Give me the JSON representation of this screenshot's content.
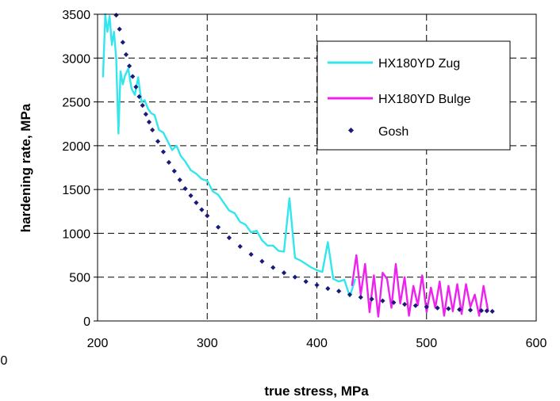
{
  "chart_data": {
    "type": "scatter",
    "title": "",
    "xlabel": "true stress, MPa",
    "ylabel": "hardening rate, MPa",
    "xlim": [
      200,
      600
    ],
    "ylim": [
      0,
      3500
    ],
    "x_ticks": [
      200,
      300,
      400,
      500,
      600
    ],
    "y_ticks": [
      0,
      500,
      1000,
      1500,
      2000,
      2500,
      3000,
      3500
    ],
    "x_tick_labels": [
      "200",
      "300",
      "400",
      "500",
      "600"
    ],
    "y_tick_labels": [
      "0",
      "500",
      "1000",
      "1500",
      "2000",
      "2500",
      "3000",
      "3500"
    ],
    "stray_tick_label": "0",
    "grid": true,
    "legend_position": "top-right",
    "series": [
      {
        "name": "HX180YD Zug",
        "style": "line",
        "color": "#33e6ee",
        "x": [
          205,
          207,
          209,
          211,
          213,
          215,
          217,
          219,
          221,
          223,
          225,
          228,
          231,
          234,
          237,
          240,
          243,
          246,
          249,
          252,
          256,
          260,
          264,
          268,
          272,
          276,
          280,
          285,
          290,
          295,
          300,
          305,
          310,
          315,
          320,
          325,
          330,
          335,
          340,
          345,
          350,
          355,
          360,
          365,
          370,
          375,
          380,
          385,
          390,
          395,
          400,
          405,
          410,
          415,
          420,
          425,
          430,
          435
        ],
        "y": [
          2780,
          3500,
          3300,
          3480,
          3150,
          3300,
          3000,
          2140,
          2850,
          2700,
          2800,
          2880,
          2650,
          2580,
          2780,
          2500,
          2520,
          2420,
          2370,
          2350,
          2180,
          2150,
          2050,
          1950,
          2000,
          1880,
          1820,
          1720,
          1680,
          1620,
          1600,
          1480,
          1440,
          1350,
          1260,
          1230,
          1130,
          1100,
          1010,
          1030,
          920,
          860,
          860,
          800,
          790,
          1400,
          720,
          690,
          650,
          610,
          580,
          560,
          900,
          480,
          450,
          470,
          280,
          480
        ]
      },
      {
        "name": "HX180YD Bulge",
        "style": "line",
        "color": "#ee22ee",
        "x": [
          432,
          436,
          440,
          444,
          448,
          452,
          456,
          460,
          464,
          468,
          472,
          476,
          480,
          484,
          488,
          492,
          496,
          500,
          504,
          508,
          512,
          516,
          520,
          524,
          528,
          532,
          536,
          540,
          544,
          548,
          552,
          556
        ],
        "y": [
          400,
          750,
          300,
          650,
          100,
          520,
          50,
          550,
          480,
          150,
          650,
          200,
          500,
          60,
          400,
          180,
          520,
          100,
          380,
          150,
          450,
          60,
          400,
          110,
          420,
          80,
          420,
          160,
          300,
          60,
          400,
          120
        ]
      },
      {
        "name": "Gosh",
        "style": "markers",
        "color": "#1a1a7a",
        "x": [
          217,
          220,
          223,
          226,
          229,
          232,
          235,
          238,
          241,
          244,
          247,
          250,
          255,
          260,
          265,
          270,
          275,
          280,
          285,
          290,
          295,
          300,
          310,
          320,
          330,
          340,
          350,
          360,
          370,
          380,
          390,
          400,
          410,
          420,
          430,
          440,
          450,
          460,
          470,
          480,
          490,
          500,
          510,
          520,
          530,
          540,
          550,
          555,
          560
        ],
        "y": [
          3490,
          3330,
          3180,
          3040,
          2910,
          2790,
          2670,
          2560,
          2460,
          2360,
          2270,
          2180,
          2050,
          1930,
          1810,
          1710,
          1610,
          1510,
          1430,
          1350,
          1270,
          1200,
          1070,
          950,
          850,
          760,
          680,
          610,
          550,
          500,
          450,
          410,
          370,
          340,
          300,
          270,
          250,
          230,
          210,
          190,
          175,
          160,
          148,
          140,
          130,
          125,
          118,
          115,
          110
        ]
      }
    ]
  }
}
